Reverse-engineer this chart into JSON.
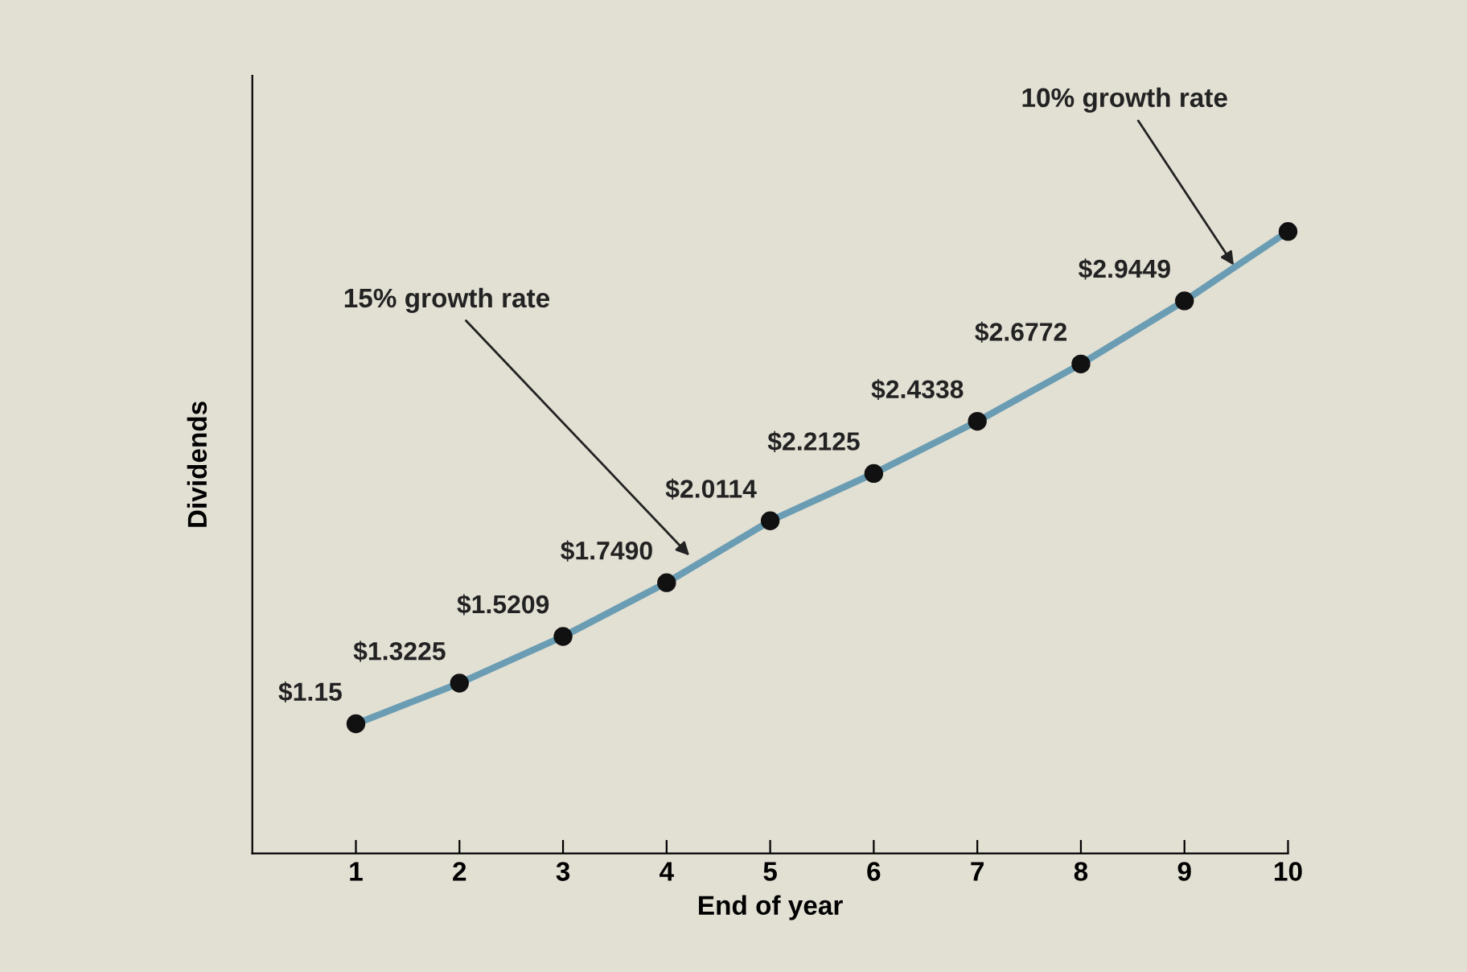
{
  "chart_data": {
    "type": "line",
    "xlabel": "End of year",
    "ylabel": "Dividends",
    "x": [
      1,
      2,
      3,
      4,
      5,
      6,
      7,
      8,
      9,
      10
    ],
    "series": [
      {
        "color": "#6a9db3",
        "colors": [
          "#111111",
          "#111111",
          "#111111",
          "#111111",
          "#111111",
          "#111111",
          "#111111",
          "#111111",
          "#111111",
          "#111111"
        ],
        "values": [
          1.15,
          1.3225,
          1.5209,
          1.749,
          2.0114,
          2.2125,
          2.4338,
          2.6772,
          2.9449,
          3.2394
        ],
        "value_labels": [
          "$1.15",
          "$1.3225",
          "$1.5209",
          "$1.7490",
          "$2.0114",
          "$2.2125",
          "$2.4338",
          "$2.6772",
          "$2.9449",
          null
        ]
      }
    ],
    "annotations": [
      {
        "text": "15% growth rate",
        "x": 4.25,
        "y": 1.85
      },
      {
        "text": "10% growth rate",
        "x": 9.5,
        "y": 3.08
      }
    ],
    "xlim": [
      0,
      10
    ],
    "xticks": [
      1,
      2,
      3,
      4,
      5,
      6,
      7,
      8,
      9,
      10
    ],
    "ylim": [
      0.6,
      3.9
    ],
    "tick_labels": "x",
    "marker": "circle",
    "line_style": "solid",
    "grid": false,
    "legend": false
  }
}
